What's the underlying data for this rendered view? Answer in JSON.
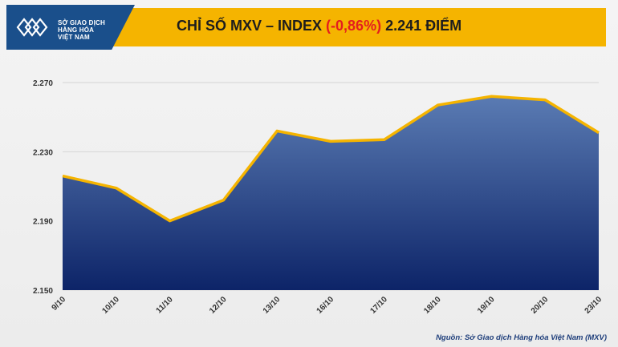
{
  "header": {
    "logo_lines": [
      "SỞ GIAO DỊCH",
      "HÀNG HÓA",
      "VIỆT NAM"
    ],
    "title_prefix": "CHỈ SỐ MXV – INDEX ",
    "title_change": "(-0,86%)",
    "title_suffix": " 2.241 ĐIỂM"
  },
  "colors": {
    "header_bg": "#f5b400",
    "logo_bg": "#1a4f8b",
    "area_top": "#5a7bb3",
    "area_bottom": "#0d2468",
    "line": "#f5b400",
    "negative": "#e41e1e"
  },
  "chart_data": {
    "type": "area",
    "title": "CHỈ SỐ MXV – INDEX (-0,86%) 2.241 ĐIỂM",
    "categories": [
      "9/10",
      "10/10",
      "11/10",
      "12/10",
      "13/10",
      "16/10",
      "17/10",
      "18/10",
      "19/10",
      "20/10",
      "23/10"
    ],
    "values": [
      2216,
      2209,
      2190,
      2202,
      2242,
      2236,
      2237,
      2257,
      2262,
      2260,
      2241
    ],
    "ylim": [
      2150,
      2270
    ],
    "yticks": [
      "2.150",
      "2.190",
      "2.230",
      "2.270"
    ],
    "ytick_values": [
      2150,
      2190,
      2230,
      2270
    ],
    "grid": true
  },
  "source_text": "Nguồn: Sở Giao dịch Hàng hóa Việt Nam (MXV)"
}
